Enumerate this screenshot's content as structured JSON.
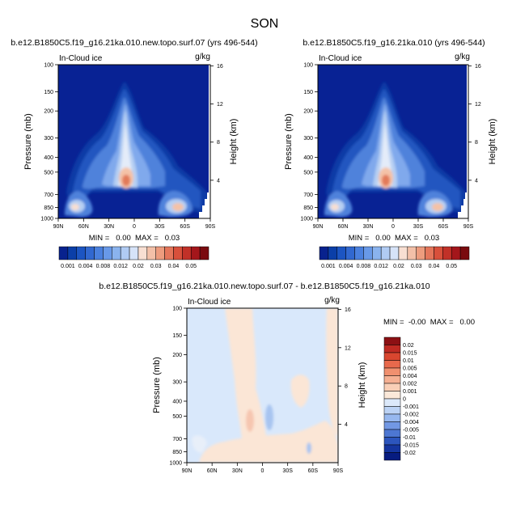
{
  "figure_title": "SON",
  "chart_data": [
    {
      "type": "heatmap",
      "title": "b.e12.B1850C5.f19_g16.21ka.010.new.topo.surf.07 (yrs 496-544)",
      "subtitle_left": "In-Cloud ice",
      "units": "g/kg",
      "xlabel": "",
      "ylabel": "Pressure (mb)",
      "ylabel_right": "Height (km)",
      "x_ticks": [
        "90N",
        "60N",
        "30N",
        "0",
        "30S",
        "60S",
        "90S"
      ],
      "x_tick_values": [
        90,
        60,
        30,
        0,
        -30,
        -60,
        -90
      ],
      "y_ticks": [
        "100",
        "150",
        "200",
        "300",
        "400",
        "500",
        "700",
        "850",
        "1000"
      ],
      "y_tick_values": [
        100,
        150,
        200,
        300,
        400,
        500,
        700,
        850,
        1000
      ],
      "height_ticks": [
        "16",
        "12",
        "8",
        "4"
      ],
      "height_tick_values": [
        16,
        12,
        8,
        4
      ],
      "ylim": [
        1000,
        100
      ],
      "xlim": [
        90,
        -90
      ],
      "min_max_text": "MIN =   0.00  MAX =   0.03",
      "min": 0.0,
      "max": 0.03,
      "features": [
        {
          "name": "tropical tower",
          "lat": 12,
          "p_top": 110,
          "p_bottom": 700,
          "peak_p": 520,
          "peak_value": 0.03
        },
        {
          "name": "northern storm track",
          "lat": 60,
          "p_top": 250,
          "p_bottom": 960,
          "peak_p": 860,
          "peak_value": 0.02
        },
        {
          "name": "southern storm track",
          "lat": -50,
          "p_top": 300,
          "p_bottom": 960,
          "peak_p": 870,
          "peak_value": 0.03
        }
      ]
    },
    {
      "type": "heatmap",
      "title": "b.e12.B1850C5.f19_g16.21ka.010 (yrs 496-544)",
      "subtitle_left": "In-Cloud ice",
      "units": "g/kg",
      "xlabel": "",
      "ylabel": "Pressure (mb)",
      "ylabel_right": "Height (km)",
      "x_ticks": [
        "90N",
        "60N",
        "30N",
        "0",
        "30S",
        "60S",
        "90S"
      ],
      "x_tick_values": [
        90,
        60,
        30,
        0,
        -30,
        -60,
        -90
      ],
      "y_ticks": [
        "100",
        "150",
        "200",
        "300",
        "400",
        "500",
        "700",
        "850",
        "1000"
      ],
      "y_tick_values": [
        100,
        150,
        200,
        300,
        400,
        500,
        700,
        850,
        1000
      ],
      "height_ticks": [
        "16",
        "12",
        "8",
        "4"
      ],
      "height_tick_values": [
        16,
        12,
        8,
        4
      ],
      "ylim": [
        1000,
        100
      ],
      "xlim": [
        90,
        -90
      ],
      "min_max_text": "MIN =   0.00  MAX =   0.03",
      "min": 0.0,
      "max": 0.03,
      "features": [
        {
          "name": "tropical tower",
          "lat": 12,
          "p_top": 110,
          "p_bottom": 700,
          "peak_p": 520,
          "peak_value": 0.03
        },
        {
          "name": "northern storm track",
          "lat": 60,
          "p_top": 250,
          "p_bottom": 960,
          "peak_p": 860,
          "peak_value": 0.02
        },
        {
          "name": "southern storm track",
          "lat": -50,
          "p_top": 300,
          "p_bottom": 960,
          "peak_p": 870,
          "peak_value": 0.03
        }
      ]
    },
    {
      "type": "heatmap",
      "title": "b.e12.B1850C5.f19_g16.21ka.010.new.topo.surf.07 - b.e12.B1850C5.f19_g16.21ka.010",
      "subtitle_left": "In-Cloud ice",
      "units": "g/kg",
      "xlabel": "",
      "ylabel": "Pressure (mb)",
      "ylabel_right": "Height (km)",
      "x_ticks": [
        "90N",
        "60N",
        "30N",
        "0",
        "30S",
        "60S",
        "90S"
      ],
      "x_tick_values": [
        90,
        60,
        30,
        0,
        -30,
        -60,
        -90
      ],
      "y_ticks": [
        "100",
        "150",
        "200",
        "300",
        "400",
        "500",
        "700",
        "850",
        "1000"
      ],
      "y_tick_values": [
        100,
        150,
        200,
        300,
        400,
        500,
        700,
        850,
        1000
      ],
      "height_ticks": [
        "16",
        "12",
        "8",
        "4"
      ],
      "height_tick_values": [
        16,
        12,
        8,
        4
      ],
      "ylim": [
        1000,
        100
      ],
      "xlim": [
        90,
        -90
      ],
      "min_max_text": "MIN =  -0.00  MAX =   0.00",
      "min": -0.0,
      "max": 0.0,
      "regions": [
        {
          "lat_from": 90,
          "lat_to": 65,
          "p_from": 100,
          "p_to": 1000,
          "value": -0.0005
        },
        {
          "lat_from": 30,
          "lat_to": 8,
          "p_from": 100,
          "p_to": 620,
          "value": 0.0005
        },
        {
          "lat_from": 60,
          "lat_to": -55,
          "p_from": 620,
          "p_to": 1000,
          "value": 0.0005
        },
        {
          "lat_from": -72,
          "lat_to": -90,
          "p_from": 100,
          "p_to": 1000,
          "value": 0.0005
        },
        {
          "lat_from": 14,
          "lat_to": 8,
          "p_from": 440,
          "p_to": 600,
          "value": 0.002
        },
        {
          "lat_from": -2,
          "lat_to": -8,
          "p_from": 420,
          "p_to": 620,
          "value": -0.002
        },
        {
          "lat_from": -55,
          "lat_to": -60,
          "p_from": 840,
          "p_to": 960,
          "value": -0.002
        }
      ]
    }
  ],
  "colorbar_top": {
    "labels": [
      "0.001",
      "0.004",
      "0.008",
      "0.012",
      "0.02",
      "0.03",
      "0.04",
      "0.05"
    ],
    "levels": [
      0.001,
      0.002,
      0.003,
      0.004,
      0.006,
      0.008,
      0.01,
      0.012,
      0.015,
      0.02,
      0.025,
      0.03,
      0.035,
      0.04,
      0.045,
      0.05
    ],
    "colors": [
      "#08228e",
      "#0b3fa8",
      "#1c55c2",
      "#3168d0",
      "#4a80de",
      "#6899e8",
      "#8ab3ee",
      "#b0cbf3",
      "#d6e3f8",
      "#f8dfd2",
      "#f3c0a8",
      "#ed9c7e",
      "#e4755a",
      "#d8503b",
      "#c13128",
      "#a4161b",
      "#7a0b0f"
    ]
  },
  "colorbar_diff": {
    "labels": [
      "0.02",
      "0.015",
      "0.01",
      "0.005",
      "0.004",
      "0.002",
      "0.001",
      "0",
      "-0.001",
      "-0.002",
      "-0.004",
      "-0.005",
      "-0.01",
      "-0.015",
      "-0.02"
    ],
    "levels": [
      0.02,
      0.015,
      0.01,
      0.005,
      0.004,
      0.002,
      0.001,
      0,
      -0.001,
      -0.002,
      -0.004,
      -0.005,
      -0.01,
      -0.015,
      -0.02
    ],
    "colors": [
      "#8c1014",
      "#bf2a23",
      "#d9462f",
      "#e8694c",
      "#f0906f",
      "#f5b093",
      "#f9cfb7",
      "#fbe8d9",
      "#dce9fa",
      "#bcd3f5",
      "#97b8ef",
      "#7298e4",
      "#4d77d2",
      "#2c55bd",
      "#15359f",
      "#071c80"
    ]
  },
  "colors": {
    "base": "#082294",
    "diff_background": "#d9e8fb",
    "diff_positive": "#fbe6d6",
    "diff_positive_strong": "#f6c6b0",
    "diff_negative_strong": "#a7c4f0"
  }
}
